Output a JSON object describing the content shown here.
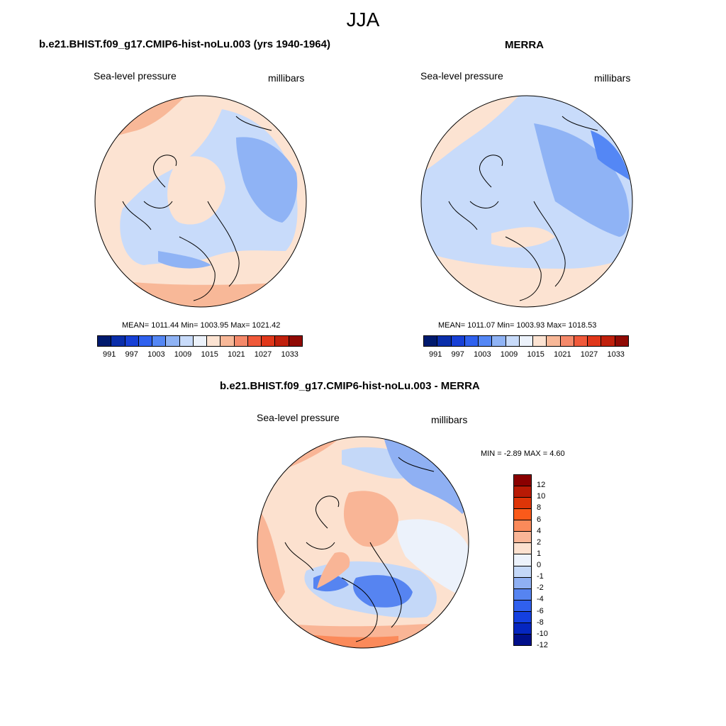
{
  "season": "JJA",
  "panels": [
    {
      "title": "b.e21.BHIST.f09_g17.CMIP6-hist-noLu.003 (yrs 1940-1964)",
      "variable": "Sea-level pressure",
      "units": "millibars",
      "stats": "MEAN= 1011.44  Min= 1003.95  Max= 1021.42"
    },
    {
      "title": "MERRA",
      "variable": "Sea-level pressure",
      "units": "millibars",
      "stats": "MEAN= 1011.07  Min= 1003.93  Max= 1018.53"
    },
    {
      "title": "b.e21.BHIST.f09_g17.CMIP6-hist-noLu.003 - MERRA",
      "variable": "Sea-level pressure",
      "units": "millibars",
      "stats": "MIN =  -2.89 MAX =   4.60"
    }
  ],
  "colorbar_abs": {
    "colors": [
      "#001a6e",
      "#0a2eaa",
      "#1740d6",
      "#2f61ee",
      "#5487f5",
      "#8fb3f5",
      "#c8dbfa",
      "#ecf2fb",
      "#fce3d2",
      "#f8b898",
      "#f5896a",
      "#f0593a",
      "#e0371a",
      "#c0200c",
      "#900a04"
    ],
    "labels": [
      "991",
      "997",
      "1003",
      "1009",
      "1015",
      "1021",
      "1027",
      "1033"
    ]
  },
  "colorbar_diff": {
    "colors": [
      "#8a0000",
      "#b81a05",
      "#de3508",
      "#fa5a1a",
      "#fb8a5a",
      "#f9b596",
      "#fce1cf",
      "#ecf2fb",
      "#c4d8f8",
      "#8fb0f3",
      "#5684f1",
      "#3060ee",
      "#1440e0",
      "#0526c0",
      "#000f8a"
    ],
    "labels": [
      "12",
      "10",
      "8",
      "6",
      "4",
      "2",
      "1",
      "0",
      "-1",
      "-2",
      "-4",
      "-6",
      "-8",
      "-10",
      "-12"
    ]
  }
}
